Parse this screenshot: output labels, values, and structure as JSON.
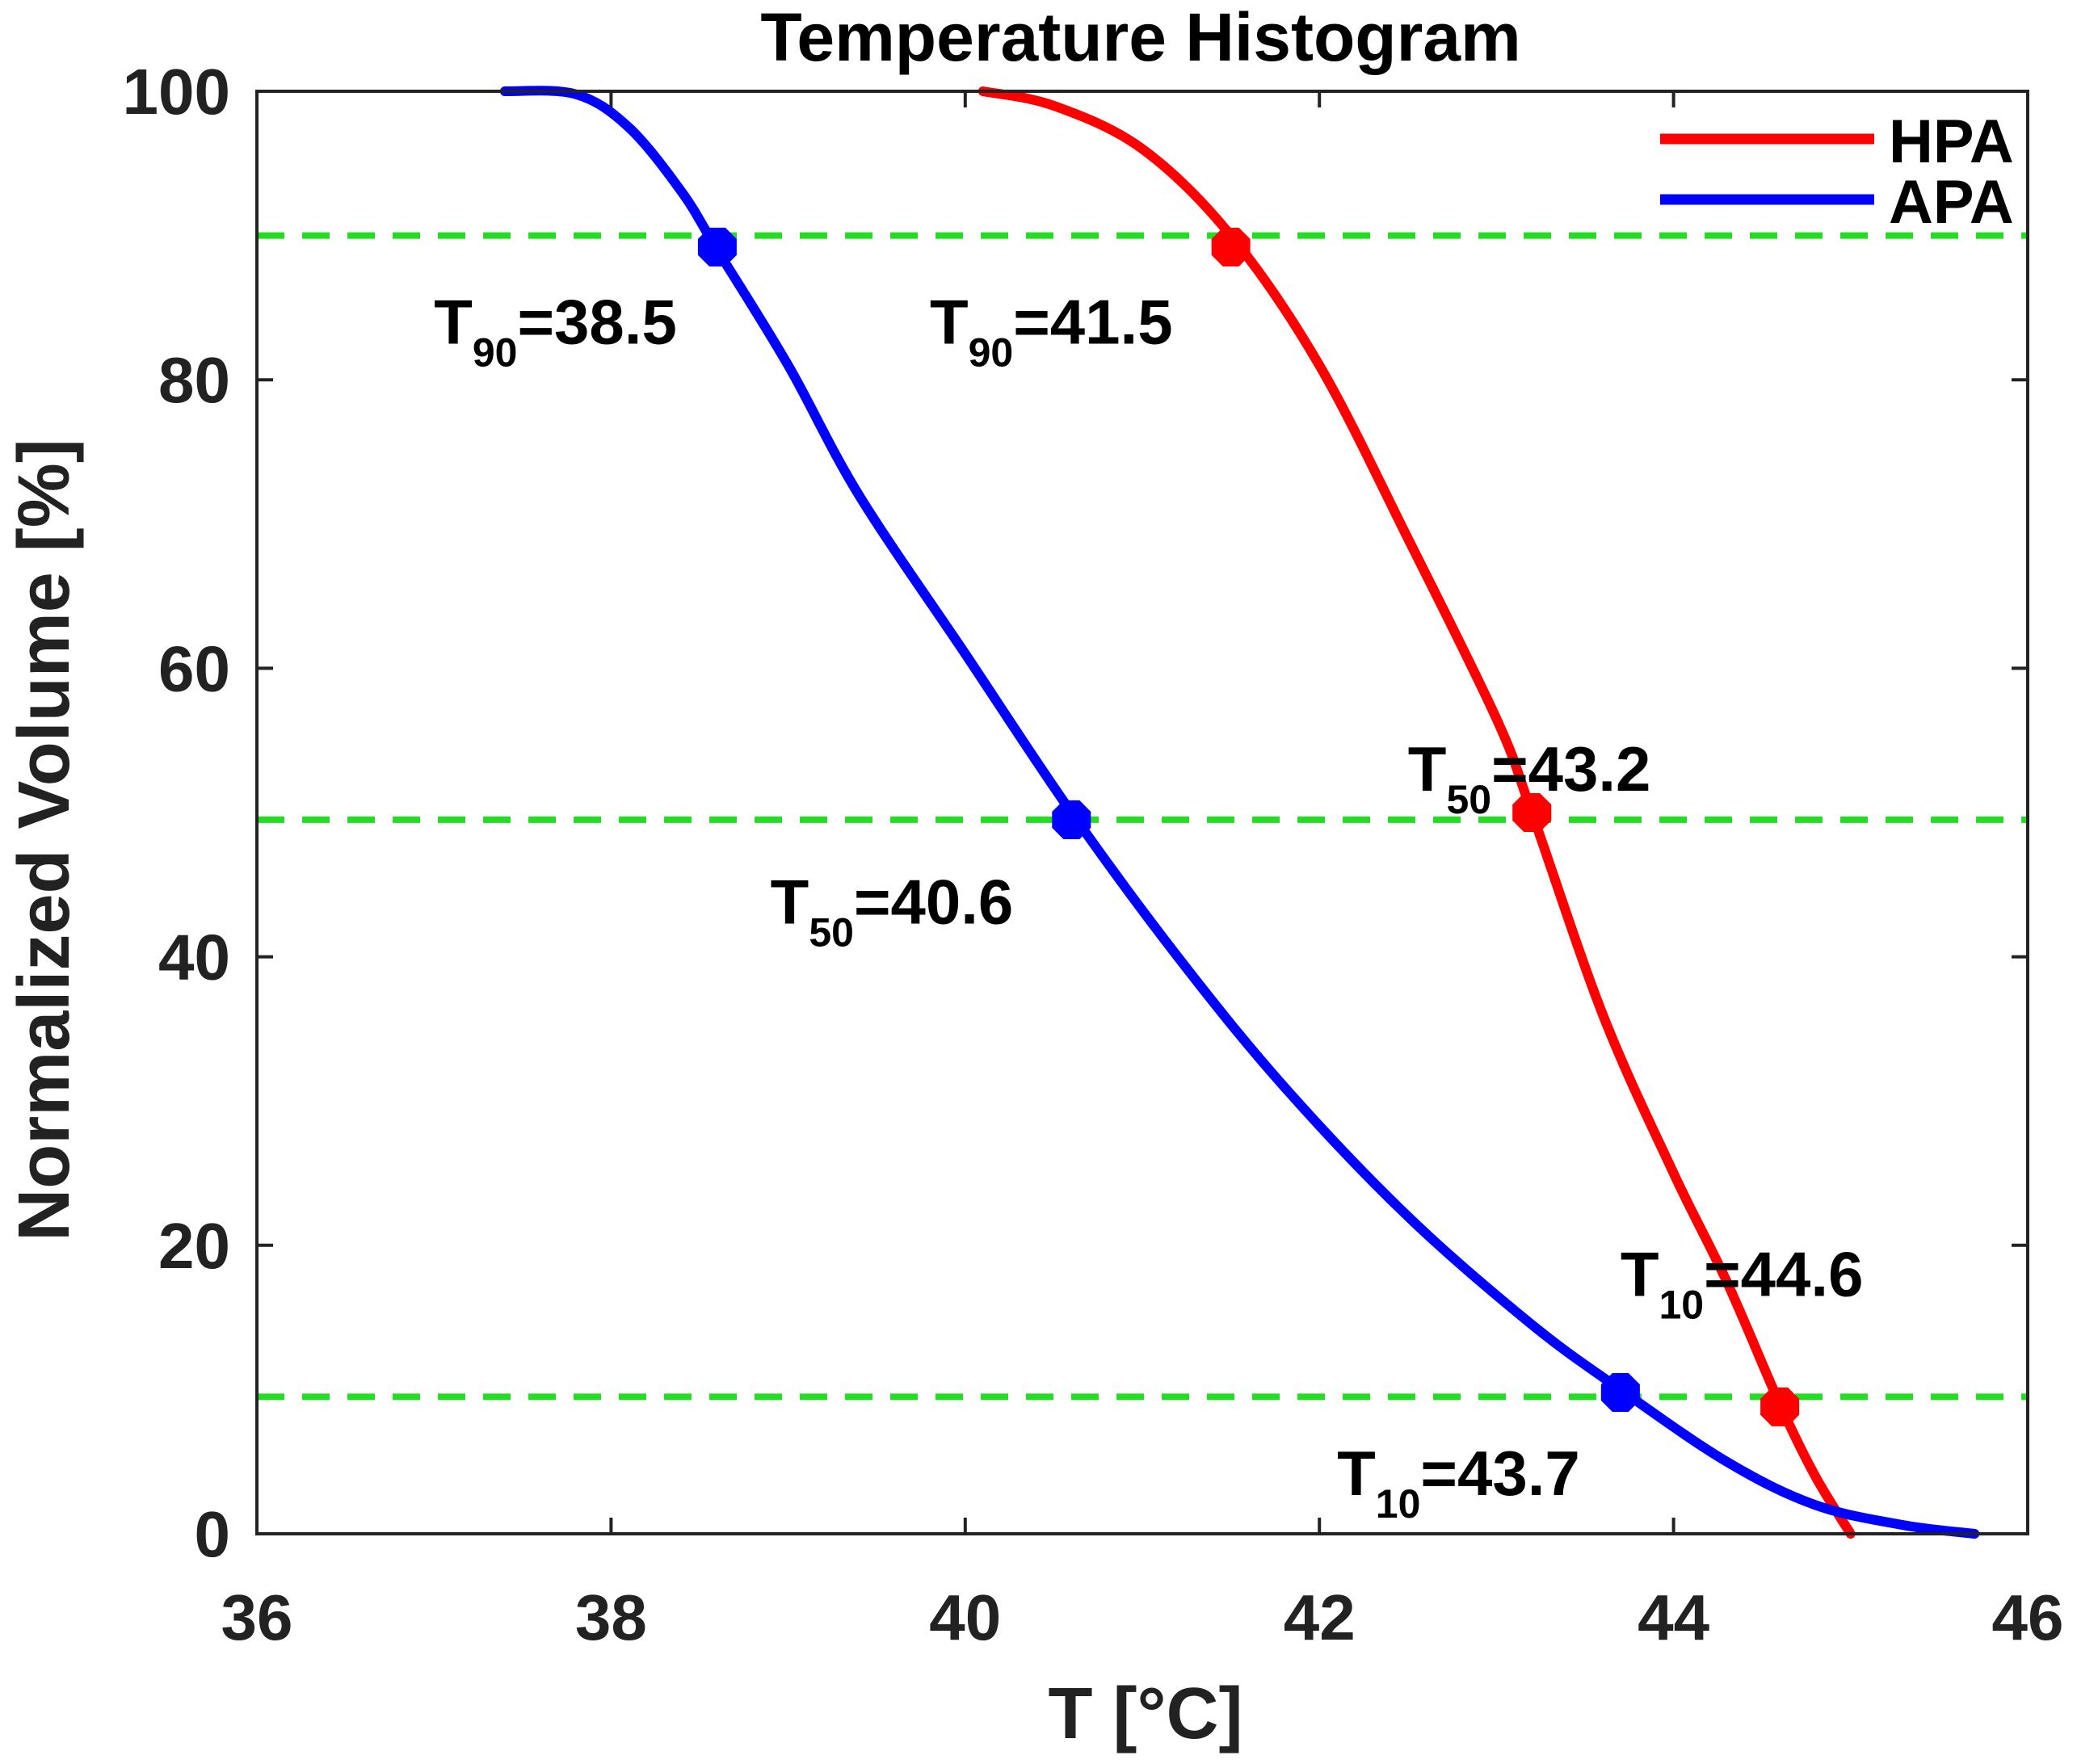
{
  "chart_data": {
    "type": "line",
    "title": "Temperature Histogram",
    "xlabel": "T [°C]",
    "ylabel": "Normalized Volume [%]",
    "xlim": [
      36,
      46
    ],
    "ylim": [
      0,
      100
    ],
    "x_ticks": [
      36,
      38,
      40,
      42,
      44,
      46
    ],
    "y_ticks": [
      0,
      20,
      40,
      60,
      80,
      100
    ],
    "grid": false,
    "legend_position": "top-right",
    "series": [
      {
        "name": "HPA",
        "color": "#ff0000",
        "points": [
          [
            40.1,
            100
          ],
          [
            40.5,
            99.0
          ],
          [
            41.0,
            96.0
          ],
          [
            41.5,
            90.0
          ],
          [
            42.0,
            81.0
          ],
          [
            42.5,
            69.0
          ],
          [
            43.0,
            56.5
          ],
          [
            43.2,
            50.0
          ],
          [
            43.6,
            36.0
          ],
          [
            44.0,
            25.0
          ],
          [
            44.3,
            17.5
          ],
          [
            44.6,
            9.0
          ],
          [
            44.8,
            4.0
          ],
          [
            45.0,
            0.0
          ]
        ]
      },
      {
        "name": "APA",
        "color": "#0000ff",
        "points": [
          [
            37.4,
            100
          ],
          [
            37.8,
            99.8
          ],
          [
            38.1,
            97.5
          ],
          [
            38.4,
            93.0
          ],
          [
            38.6,
            89.0
          ],
          [
            39.0,
            81.0
          ],
          [
            39.4,
            72.0
          ],
          [
            40.0,
            61.0
          ],
          [
            40.6,
            50.0
          ],
          [
            41.2,
            40.0
          ],
          [
            41.8,
            31.0
          ],
          [
            42.5,
            22.0
          ],
          [
            43.2,
            14.5
          ],
          [
            43.7,
            10.0
          ],
          [
            44.3,
            5.0
          ],
          [
            44.8,
            2.0
          ],
          [
            45.3,
            0.6
          ],
          [
            45.7,
            0.0
          ]
        ]
      }
    ],
    "reference_lines": [
      {
        "name": "90%",
        "y": 90,
        "color": "#22dd22"
      },
      {
        "name": "50%",
        "y": 49.5,
        "color": "#22dd22"
      },
      {
        "name": "10%",
        "y": 9.5,
        "color": "#22dd22"
      }
    ],
    "markers": [
      {
        "series": "APA",
        "x": 38.6,
        "y": 89.2,
        "color": "#0000ff"
      },
      {
        "series": "HPA",
        "x": 41.5,
        "y": 89.2,
        "color": "#ff0000"
      },
      {
        "series": "APA",
        "x": 40.6,
        "y": 49.5,
        "color": "#0000ff"
      },
      {
        "series": "HPA",
        "x": 43.2,
        "y": 50.0,
        "color": "#ff0000"
      },
      {
        "series": "APA",
        "x": 43.7,
        "y": 9.8,
        "color": "#0000ff"
      },
      {
        "series": "HPA",
        "x": 44.6,
        "y": 8.8,
        "color": "#ff0000"
      }
    ],
    "annotations": [
      {
        "name": "apa-t90",
        "base": "T",
        "sub": "90",
        "text": "=38.5",
        "x": 37.0,
        "y": 82.5
      },
      {
        "name": "hpa-t90",
        "base": "T",
        "sub": "90",
        "text": "=41.5",
        "x": 39.8,
        "y": 82.5
      },
      {
        "name": "hpa-t50",
        "base": "T",
        "sub": "50",
        "text": "=43.2",
        "x": 42.5,
        "y": 51.5
      },
      {
        "name": "apa-t50",
        "base": "T",
        "sub": "50",
        "text": "=40.6",
        "x": 38.9,
        "y": 42.3
      },
      {
        "name": "hpa-t10",
        "base": "T",
        "sub": "10",
        "text": "=44.6",
        "x": 43.7,
        "y": 16.5
      },
      {
        "name": "apa-t10",
        "base": "T",
        "sub": "10",
        "text": "=43.7",
        "x": 42.1,
        "y": 2.7
      }
    ]
  }
}
